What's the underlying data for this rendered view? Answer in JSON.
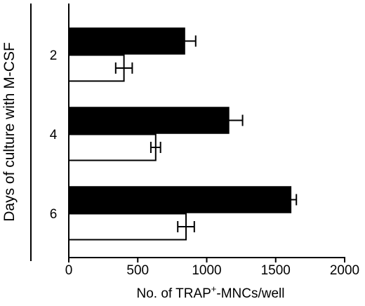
{
  "chart_data": {
    "type": "bar",
    "orientation": "horizontal",
    "title": "",
    "ylabel": "Days of culture with M-CSF",
    "xlabel_prefix": "No. of TRAP",
    "xlabel_superscript": "+",
    "xlabel_suffix": "-MNCs/well",
    "categories": [
      "2",
      "4",
      "6"
    ],
    "series": [
      {
        "style": "filled",
        "color": "#000000",
        "values": [
          840,
          1160,
          1610
        ],
        "errors": [
          80,
          100,
          40
        ]
      },
      {
        "style": "open",
        "color": "#ffffff",
        "values": [
          400,
          630,
          850
        ],
        "errors": [
          60,
          35,
          60
        ]
      }
    ],
    "xlim": [
      0,
      2000
    ],
    "xticks": [
      "0",
      "500",
      "1000",
      "1500",
      "2000"
    ],
    "xtick_values": [
      0,
      500,
      1000,
      1500,
      2000
    ],
    "grid": false
  }
}
